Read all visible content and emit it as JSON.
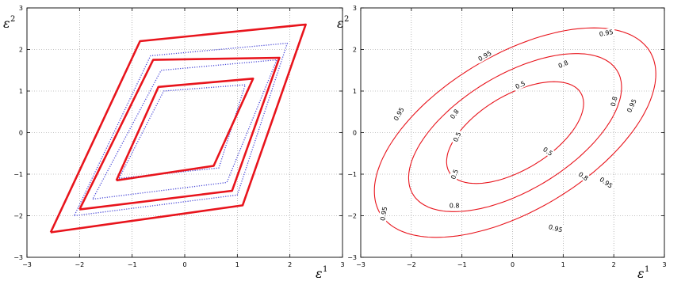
{
  "chart_data": [
    {
      "type": "line",
      "xlabel": "ε¹",
      "ylabel": "ε²",
      "xlim": [
        -3,
        3
      ],
      "ylim": [
        -3,
        3
      ],
      "xticks": [
        "−3",
        "−2",
        "−1",
        "0",
        "1",
        "2",
        "3"
      ],
      "yticks": [
        "−3",
        "−2",
        "−1",
        "0",
        "1",
        "2",
        "3"
      ],
      "grid": true,
      "series": [
        {
          "style": "solid",
          "color": "#e8141c",
          "points": [
            [
              -2.55,
              -2.4
            ],
            [
              1.1,
              -1.75
            ],
            [
              2.3,
              2.6
            ],
            [
              -0.85,
              2.2
            ],
            [
              -2.55,
              -2.4
            ]
          ]
        },
        {
          "style": "dotted",
          "color": "#4a4ad8",
          "points": [
            [
              -2.1,
              -2.0
            ],
            [
              1.0,
              -1.5
            ],
            [
              1.95,
              2.15
            ],
            [
              -0.65,
              1.85
            ],
            [
              -2.1,
              -2.0
            ]
          ]
        },
        {
          "style": "solid",
          "color": "#e8141c",
          "points": [
            [
              -2.0,
              -1.85
            ],
            [
              0.9,
              -1.4
            ],
            [
              1.8,
              1.8
            ],
            [
              -0.6,
              1.75
            ],
            [
              -2.0,
              -1.85
            ]
          ]
        },
        {
          "style": "dotted",
          "color": "#4a4ad8",
          "points": [
            [
              -1.75,
              -1.6
            ],
            [
              0.8,
              -1.2
            ],
            [
              1.75,
              1.75
            ],
            [
              -0.45,
              1.5
            ],
            [
              -1.75,
              -1.6
            ]
          ]
        },
        {
          "style": "dotted",
          "color": "#4a4ad8",
          "points": [
            [
              -1.25,
              -1.1
            ],
            [
              0.65,
              -0.85
            ],
            [
              1.15,
              1.15
            ],
            [
              -0.4,
              1.0
            ],
            [
              -1.25,
              -1.1
            ]
          ]
        },
        {
          "style": "solid",
          "color": "#e8141c",
          "points": [
            [
              -1.3,
              -1.15
            ],
            [
              0.55,
              -0.8
            ],
            [
              1.3,
              1.3
            ],
            [
              -0.5,
              1.1
            ],
            [
              -1.3,
              -1.15
            ]
          ]
        }
      ]
    },
    {
      "type": "contour",
      "xlabel": "ε¹",
      "ylabel": "ε²",
      "xlim": [
        -3,
        3
      ],
      "ylim": [
        -3,
        3
      ],
      "xticks": [
        "−3",
        "−2",
        "−1",
        "0",
        "1",
        "2",
        "3"
      ],
      "yticks": [
        "−3",
        "−2",
        "−1",
        "0",
        "1",
        "2",
        "3"
      ],
      "grid": true,
      "color": "#e8141c",
      "levels": [
        {
          "level": "0.5",
          "center": [
            0.05,
            0.0
          ],
          "semi_major": 1.62,
          "semi_minor": 0.84,
          "angle_deg": 40
        },
        {
          "level": "0.8",
          "center": [
            0.05,
            0.0
          ],
          "semi_major": 2.52,
          "semi_minor": 1.3,
          "angle_deg": 40
        },
        {
          "level": "0.95",
          "center": [
            0.05,
            0.0
          ],
          "semi_major": 3.32,
          "semi_minor": 1.75,
          "angle_deg": 40
        }
      ],
      "labels": [
        {
          "text": "0.95",
          "x": 1.85,
          "y": 2.4,
          "angle": -10
        },
        {
          "text": "0.95",
          "x": -0.55,
          "y": 1.85,
          "angle": -30
        },
        {
          "text": "0.95",
          "x": -2.25,
          "y": 0.45,
          "angle": -60
        },
        {
          "text": "0.95",
          "x": -2.55,
          "y": -1.95,
          "angle": -80
        },
        {
          "text": "0.95",
          "x": 0.85,
          "y": -2.3,
          "angle": 15
        },
        {
          "text": "0.95",
          "x": 2.35,
          "y": 0.65,
          "angle": -65
        },
        {
          "text": "0.95",
          "x": 1.85,
          "y": -1.2,
          "angle": 35
        },
        {
          "text": "0.8",
          "x": 1.0,
          "y": 1.65,
          "angle": -25
        },
        {
          "text": "0.8",
          "x": -1.15,
          "y": 0.45,
          "angle": -55
        },
        {
          "text": "0.8",
          "x": -1.15,
          "y": -1.75,
          "angle": 0
        },
        {
          "text": "0.8",
          "x": 1.4,
          "y": -1.05,
          "angle": 35
        },
        {
          "text": "0.8",
          "x": 2.0,
          "y": 0.75,
          "angle": -75
        },
        {
          "text": "0.5",
          "x": 0.15,
          "y": 1.15,
          "angle": -25
        },
        {
          "text": "0.5",
          "x": -1.1,
          "y": -0.1,
          "angle": -65
        },
        {
          "text": "0.5",
          "x": -1.15,
          "y": -1.0,
          "angle": -70
        },
        {
          "text": "0.5",
          "x": 0.7,
          "y": -0.45,
          "angle": 35
        }
      ]
    }
  ]
}
